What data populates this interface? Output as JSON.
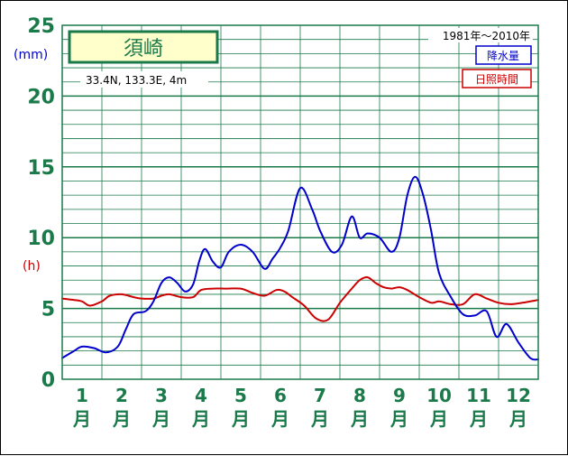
{
  "chart_data": {
    "type": "line",
    "title": "須崎",
    "subtitle": "33.4N,  133.3E,  4m",
    "period": "1981年〜2010年",
    "y_unit_precip": "(mm)",
    "y_unit_sun": "(h)",
    "ylim": [
      0,
      25
    ],
    "y_ticks": [
      "0",
      "5",
      "10",
      "15",
      "20",
      "25"
    ],
    "x_ticks": [
      {
        "num": "1",
        "suffix": "月"
      },
      {
        "num": "2",
        "suffix": "月"
      },
      {
        "num": "3",
        "suffix": "月"
      },
      {
        "num": "4",
        "suffix": "月"
      },
      {
        "num": "5",
        "suffix": "月"
      },
      {
        "num": "6",
        "suffix": "月"
      },
      {
        "num": "7",
        "suffix": "月"
      },
      {
        "num": "8",
        "suffix": "月"
      },
      {
        "num": "9",
        "suffix": "月"
      },
      {
        "num": "10",
        "suffix": "月"
      },
      {
        "num": "11",
        "suffix": "月"
      },
      {
        "num": "12",
        "suffix": "月"
      }
    ],
    "xlim": [
      0.5,
      12.5
    ],
    "grid": true,
    "series": [
      {
        "name": "降水量",
        "color": "#0000cc",
        "x": [
          0.5,
          0.8,
          1.0,
          1.3,
          1.6,
          1.9,
          2.1,
          2.3,
          2.6,
          2.8,
          3.0,
          3.2,
          3.4,
          3.6,
          3.8,
          3.95,
          4.1,
          4.3,
          4.5,
          4.7,
          5.0,
          5.3,
          5.6,
          5.8,
          6.0,
          6.2,
          6.5,
          6.8,
          7.0,
          7.3,
          7.55,
          7.8,
          8.0,
          8.2,
          8.5,
          8.8,
          9.0,
          9.2,
          9.4,
          9.6,
          9.8,
          10.0,
          10.3,
          10.6,
          10.9,
          11.2,
          11.45,
          11.7,
          12.0,
          12.3,
          12.5
        ],
        "values": [
          1.5,
          2.0,
          2.3,
          2.2,
          1.9,
          2.3,
          3.5,
          4.6,
          4.8,
          5.5,
          6.8,
          7.2,
          6.8,
          6.2,
          6.7,
          8.3,
          9.2,
          8.3,
          7.9,
          9.0,
          9.5,
          9.0,
          7.8,
          8.5,
          9.3,
          10.5,
          13.5,
          12.0,
          10.5,
          9.0,
          9.5,
          11.5,
          10.0,
          10.3,
          10.0,
          9.0,
          10.0,
          13.0,
          14.3,
          13.0,
          10.5,
          7.5,
          5.8,
          4.6,
          4.5,
          4.8,
          3.0,
          3.9,
          2.6,
          1.5,
          1.4
        ]
      },
      {
        "name": "日照時間",
        "color": "#cc0000",
        "x": [
          0.5,
          0.8,
          1.0,
          1.2,
          1.5,
          1.7,
          2.0,
          2.3,
          2.5,
          2.8,
          3.0,
          3.2,
          3.5,
          3.8,
          4.0,
          4.3,
          4.6,
          5.0,
          5.3,
          5.6,
          5.9,
          6.1,
          6.3,
          6.6,
          6.9,
          7.2,
          7.5,
          7.8,
          8.0,
          8.2,
          8.4,
          8.6,
          8.8,
          9.0,
          9.2,
          9.5,
          9.8,
          10.0,
          10.3,
          10.6,
          10.9,
          11.2,
          11.5,
          11.8,
          12.1,
          12.5
        ],
        "values": [
          5.7,
          5.6,
          5.5,
          5.2,
          5.5,
          5.9,
          6.0,
          5.8,
          5.7,
          5.7,
          5.9,
          6.0,
          5.8,
          5.8,
          6.3,
          6.4,
          6.4,
          6.4,
          6.1,
          5.9,
          6.3,
          6.2,
          5.8,
          5.2,
          4.3,
          4.2,
          5.4,
          6.4,
          7.0,
          7.2,
          6.8,
          6.5,
          6.4,
          6.5,
          6.3,
          5.8,
          5.4,
          5.5,
          5.3,
          5.3,
          6.0,
          5.7,
          5.4,
          5.3,
          5.4,
          5.6
        ]
      }
    ]
  }
}
